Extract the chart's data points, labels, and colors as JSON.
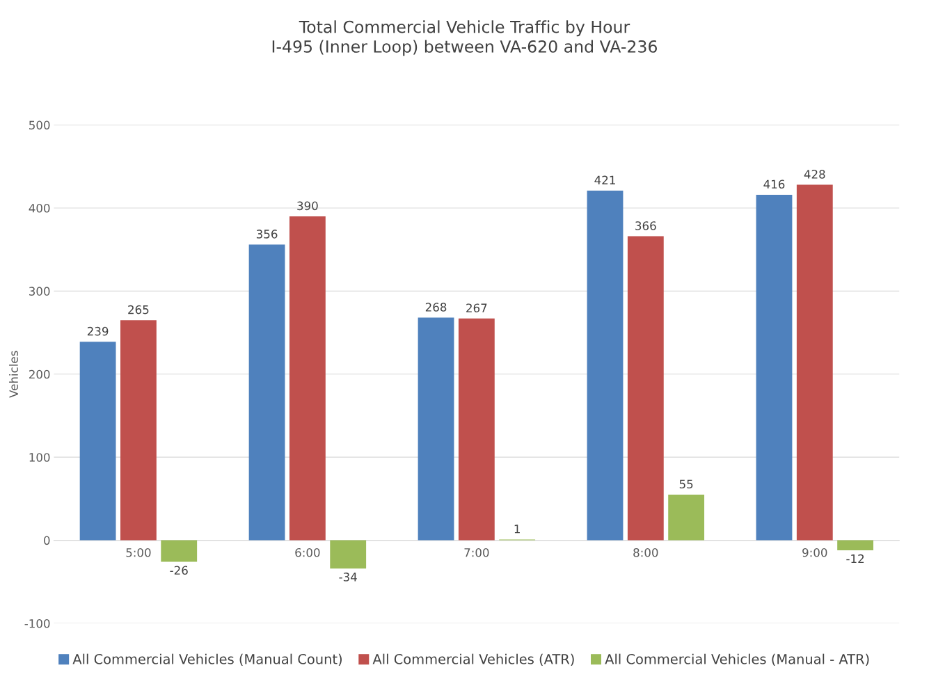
{
  "chart_data": {
    "type": "bar",
    "title": "Total Commercial Vehicle Traffic by Hour\nI-495 (Inner Loop) between VA-620 and VA-236",
    "ylabel": "Vehicles",
    "categories": [
      "5:00",
      "6:00",
      "7:00",
      "8:00",
      "9:00"
    ],
    "series": [
      {
        "name": "All Commercial Vehicles (Manual Count)",
        "color": "#4f81bd",
        "values": [
          239,
          356,
          268,
          421,
          416
        ]
      },
      {
        "name": "All Commercial Vehicles (ATR)",
        "color": "#c0504d",
        "values": [
          265,
          390,
          267,
          366,
          428
        ]
      },
      {
        "name": "All Commercial Vehicles (Manual - ATR)",
        "color": "#9bbb59",
        "values": [
          -26,
          -34,
          1,
          55,
          -12
        ]
      }
    ],
    "ylim": [
      -100,
      500
    ],
    "yticks": [
      -100,
      0,
      100,
      200,
      300,
      400,
      500
    ],
    "grid": "y",
    "legend": "bottom",
    "data_labels": true
  }
}
